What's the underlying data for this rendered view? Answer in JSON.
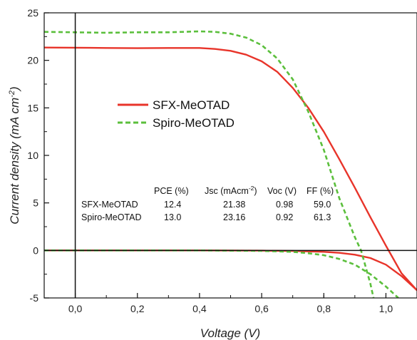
{
  "chart_data": {
    "type": "line",
    "xlabel": "Voltage (V)",
    "ylabel_main": "Current density (mA cm",
    "ylabel_sup": "-2",
    "ylabel_close": ")",
    "xlim": [
      -0.1,
      1.1
    ],
    "ylim": [
      -5,
      25
    ],
    "x_ticks": [
      0.0,
      0.2,
      0.4,
      0.6,
      0.8,
      1.0
    ],
    "x_tick_labels": [
      "0,0",
      "0,2",
      "0,4",
      "0,6",
      "0,8",
      "1,0"
    ],
    "y_ticks": [
      -5,
      0,
      5,
      10,
      15,
      20,
      25
    ],
    "y_tick_labels": [
      "-5",
      "0",
      "5",
      "10",
      "15",
      "20",
      "25"
    ],
    "legend": {
      "position": "upper-left-center"
    },
    "series": [
      {
        "name": "SFX-MeOTAD",
        "color": "#e8342a",
        "style": "solid",
        "light": {
          "x": [
            -0.1,
            0.0,
            0.1,
            0.2,
            0.3,
            0.4,
            0.45,
            0.5,
            0.55,
            0.6,
            0.65,
            0.7,
            0.75,
            0.8,
            0.85,
            0.9,
            0.95,
            1.0,
            1.05,
            1.1
          ],
          "y": [
            21.35,
            21.33,
            21.3,
            21.28,
            21.3,
            21.3,
            21.2,
            21.0,
            20.6,
            19.9,
            18.8,
            17.1,
            15.0,
            12.5,
            9.6,
            6.6,
            3.5,
            0.5,
            -2.4,
            -4.2
          ]
        },
        "dark": {
          "x": [
            -0.1,
            0.0,
            0.2,
            0.4,
            0.6,
            0.7,
            0.8,
            0.85,
            0.9,
            0.95,
            1.0,
            1.05,
            1.1
          ],
          "y": [
            0.0,
            0.0,
            0.0,
            0.0,
            -0.02,
            -0.06,
            -0.15,
            -0.25,
            -0.45,
            -0.8,
            -1.5,
            -2.7,
            -4.2
          ]
        }
      },
      {
        "name": "Spiro-MeOTAD",
        "color": "#5bbf3c",
        "style": "dashed",
        "light": {
          "x": [
            -0.1,
            0.0,
            0.1,
            0.2,
            0.3,
            0.4,
            0.45,
            0.5,
            0.55,
            0.6,
            0.65,
            0.7,
            0.75,
            0.8,
            0.85,
            0.9,
            0.92,
            0.95,
            0.96
          ],
          "y": [
            23.0,
            22.95,
            22.9,
            22.95,
            22.95,
            23.05,
            23.0,
            22.8,
            22.4,
            21.6,
            20.2,
            18.0,
            14.6,
            10.6,
            5.5,
            1.4,
            0.0,
            -3.5,
            -5.0
          ]
        },
        "dark": {
          "x": [
            -0.1,
            0.0,
            0.2,
            0.4,
            0.6,
            0.7,
            0.75,
            0.8,
            0.85,
            0.9,
            0.95,
            1.0,
            1.04
          ],
          "y": [
            0.0,
            0.0,
            0.0,
            0.0,
            -0.05,
            -0.15,
            -0.3,
            -0.5,
            -0.9,
            -1.5,
            -2.5,
            -3.8,
            -5.0
          ]
        }
      }
    ],
    "table": {
      "headers": [
        "",
        "PCE (%)",
        "Jsc (mAcm",
        "Voc (V)",
        "FF (%)"
      ],
      "jsc_sup": "-2",
      "jsc_close": ")",
      "rows": [
        [
          "SFX-MeOTAD",
          "12.4",
          "21.38",
          "0.98",
          "59.0"
        ],
        [
          "Spiro-MeOTAD",
          "13.0",
          "23.16",
          "0.92",
          "61.3"
        ]
      ]
    }
  }
}
